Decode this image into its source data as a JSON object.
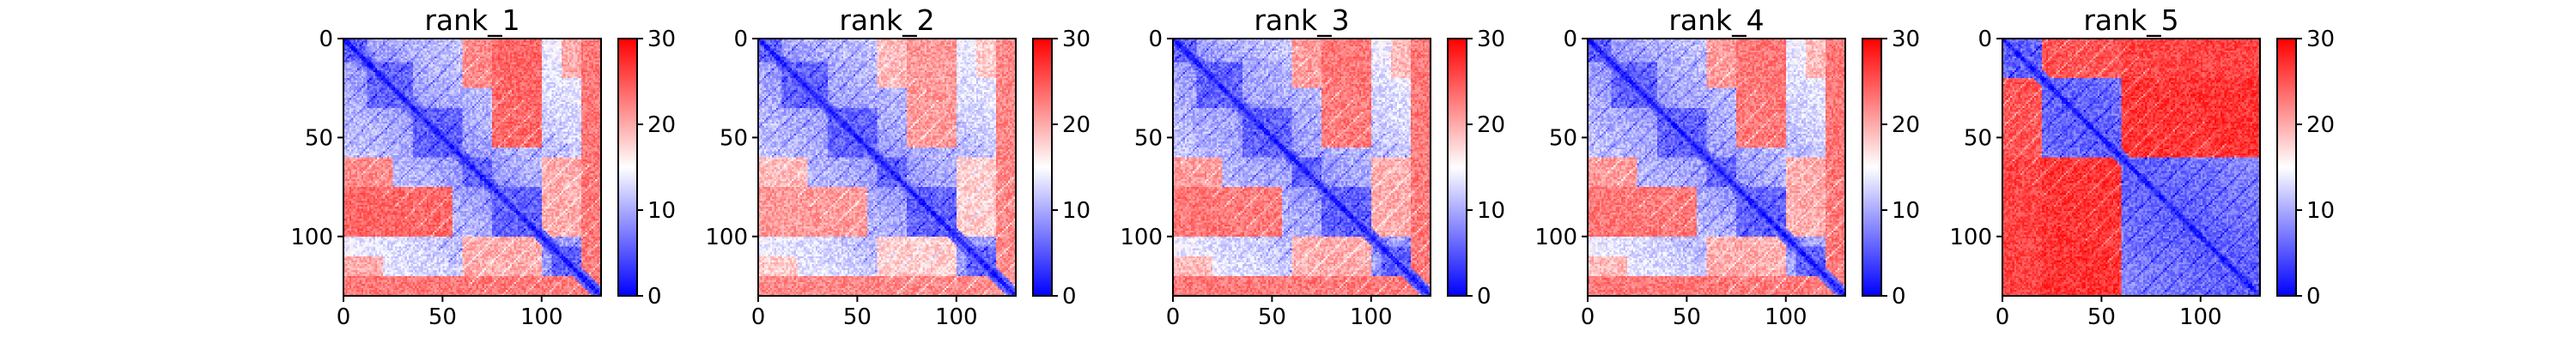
{
  "chart_data": [
    {
      "type": "heatmap",
      "title": "rank_1",
      "size": 130,
      "xticks": [
        "0",
        "50",
        "100"
      ],
      "yticks": [
        "0",
        "50",
        "100"
      ],
      "colorbar": {
        "min": 0,
        "max": 30,
        "ticks": [
          "0",
          "10",
          "20",
          "30"
        ],
        "low": "#0000ff",
        "mid": "#ffffff",
        "high": "#ff0000"
      },
      "domains": [
        [
          0,
          12
        ],
        [
          12,
          35
        ],
        [
          35,
          60
        ],
        [
          60,
          75
        ],
        [
          75,
          105
        ],
        [
          105,
          130
        ]
      ],
      "hot_blocks": [
        [
          0,
          25,
          60,
          100,
          22
        ],
        [
          75,
          100,
          0,
          55,
          24
        ],
        [
          60,
          100,
          100,
          120,
          20
        ],
        [
          120,
          130,
          0,
          130,
          23
        ],
        [
          0,
          20,
          110,
          125,
          20
        ]
      ]
    },
    {
      "type": "heatmap",
      "title": "rank_2",
      "size": 130,
      "xticks": [
        "0",
        "50",
        "100"
      ],
      "yticks": [
        "0",
        "50",
        "100"
      ],
      "colorbar": {
        "min": 0,
        "max": 30,
        "ticks": [
          "0",
          "10",
          "20",
          "30"
        ],
        "low": "#0000ff",
        "mid": "#ffffff",
        "high": "#ff0000"
      },
      "domains": [
        [
          0,
          12
        ],
        [
          12,
          35
        ],
        [
          35,
          60
        ],
        [
          60,
          75
        ],
        [
          75,
          105
        ],
        [
          105,
          130
        ]
      ],
      "hot_blocks": [
        [
          0,
          25,
          60,
          100,
          19
        ],
        [
          75,
          100,
          0,
          55,
          21
        ],
        [
          60,
          100,
          100,
          120,
          18
        ],
        [
          120,
          130,
          0,
          130,
          22
        ],
        [
          0,
          20,
          110,
          125,
          18
        ]
      ]
    },
    {
      "type": "heatmap",
      "title": "rank_3",
      "size": 130,
      "xticks": [
        "0",
        "50",
        "100"
      ],
      "yticks": [
        "0",
        "50",
        "100"
      ],
      "colorbar": {
        "min": 0,
        "max": 30,
        "ticks": [
          "0",
          "10",
          "20",
          "30"
        ],
        "low": "#0000ff",
        "mid": "#ffffff",
        "high": "#ff0000"
      },
      "domains": [
        [
          0,
          12
        ],
        [
          12,
          35
        ],
        [
          35,
          60
        ],
        [
          60,
          75
        ],
        [
          75,
          105
        ],
        [
          105,
          130
        ]
      ],
      "hot_blocks": [
        [
          0,
          25,
          60,
          100,
          21
        ],
        [
          75,
          100,
          0,
          55,
          23
        ],
        [
          60,
          100,
          100,
          120,
          20
        ],
        [
          120,
          130,
          0,
          130,
          23
        ],
        [
          0,
          20,
          110,
          125,
          19
        ]
      ]
    },
    {
      "type": "heatmap",
      "title": "rank_4",
      "size": 130,
      "xticks": [
        "0",
        "50",
        "100"
      ],
      "yticks": [
        "0",
        "50",
        "100"
      ],
      "colorbar": {
        "min": 0,
        "max": 30,
        "ticks": [
          "0",
          "10",
          "20",
          "30"
        ],
        "low": "#0000ff",
        "mid": "#ffffff",
        "high": "#ff0000"
      },
      "domains": [
        [
          0,
          12
        ],
        [
          12,
          35
        ],
        [
          35,
          60
        ],
        [
          60,
          75
        ],
        [
          75,
          105
        ],
        [
          105,
          130
        ]
      ],
      "hot_blocks": [
        [
          0,
          25,
          60,
          100,
          21
        ],
        [
          75,
          100,
          0,
          55,
          23
        ],
        [
          60,
          100,
          100,
          120,
          20
        ],
        [
          120,
          130,
          0,
          130,
          23
        ],
        [
          0,
          20,
          110,
          125,
          19
        ]
      ]
    },
    {
      "type": "heatmap",
      "title": "rank_5",
      "size": 130,
      "xticks": [
        "0",
        "50",
        "100"
      ],
      "yticks": [
        "0",
        "50",
        "100"
      ],
      "colorbar": {
        "min": 0,
        "max": 30,
        "ticks": [
          "0",
          "10",
          "20",
          "30"
        ],
        "low": "#0000ff",
        "mid": "#ffffff",
        "high": "#ff0000"
      },
      "domains": [
        [
          0,
          20
        ],
        [
          20,
          60
        ],
        [
          60,
          130
        ]
      ],
      "hot_blocks": [
        [
          0,
          20,
          20,
          130,
          25
        ],
        [
          20,
          60,
          60,
          130,
          27
        ],
        [
          60,
          130,
          0,
          60,
          26
        ]
      ]
    }
  ]
}
